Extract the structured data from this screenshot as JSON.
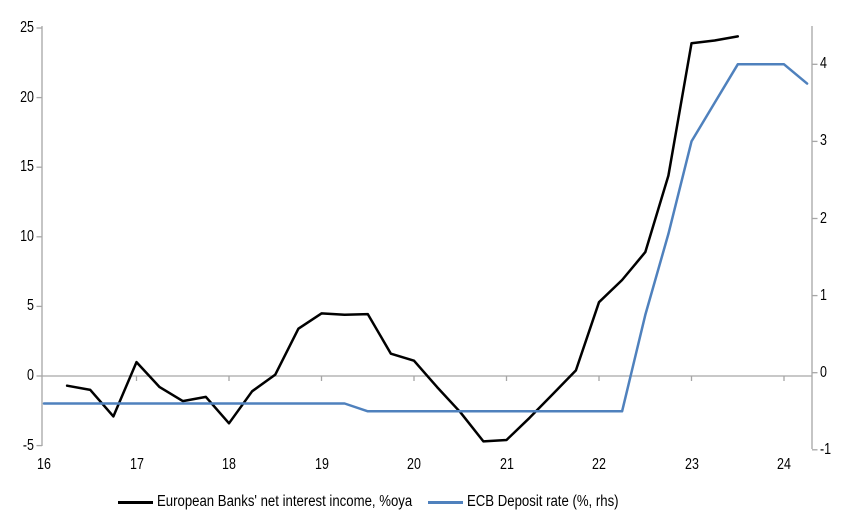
{
  "chart_data": {
    "type": "line",
    "title": "",
    "grid": "zero-line-only",
    "legend_position": "bottom",
    "x_axis": {
      "min": 16,
      "max": 24.3,
      "tick_years": [
        16,
        17,
        18,
        19,
        20,
        21,
        22,
        23,
        24
      ],
      "tick_labels": [
        "16",
        "17",
        "18",
        "19",
        "20",
        "21",
        "22",
        "23",
        "24"
      ]
    },
    "left_axis": {
      "min": -5,
      "max": 25,
      "ticks": [
        -5,
        0,
        5,
        10,
        15,
        20,
        25
      ],
      "tick_labels": [
        "-5",
        "0",
        "5",
        "10",
        "15",
        "20",
        "25"
      ]
    },
    "right_axis": {
      "min": -1,
      "max": 4.5,
      "ticks": [
        -1,
        0,
        1,
        2,
        3,
        4
      ],
      "tick_labels": [
        "-1",
        "0",
        "1",
        "2",
        "3",
        "4"
      ]
    },
    "series": [
      {
        "name": "European Banks' net interest income, %oya",
        "axis": "left",
        "color": "#000000",
        "x": [
          16.25,
          16.5,
          16.75,
          17.0,
          17.25,
          17.5,
          17.75,
          18.0,
          18.25,
          18.5,
          18.75,
          19.0,
          19.25,
          19.5,
          19.75,
          20.0,
          20.25,
          20.5,
          20.75,
          21.0,
          21.25,
          21.5,
          21.75,
          22.0,
          22.25,
          22.5,
          22.75,
          23.0,
          23.25,
          23.5
        ],
        "values": [
          -0.7,
          -1.0,
          -2.9,
          1.0,
          -0.8,
          -1.8,
          -1.5,
          -3.4,
          -1.1,
          0.1,
          3.4,
          4.5,
          4.4,
          4.45,
          1.6,
          1.1,
          -0.8,
          -2.6,
          -4.7,
          -4.6,
          -3.0,
          -1.3,
          0.4,
          5.3,
          6.9,
          8.9,
          14.4,
          23.9,
          24.1,
          24.4
        ]
      },
      {
        "name": "ECB Deposit rate (%, rhs)",
        "axis": "right",
        "color": "#4F81BD",
        "x": [
          16.0,
          16.25,
          16.5,
          16.75,
          17.0,
          17.25,
          17.5,
          17.75,
          18.0,
          18.25,
          18.5,
          18.75,
          19.0,
          19.25,
          19.5,
          19.75,
          20.0,
          20.25,
          20.5,
          20.75,
          21.0,
          21.25,
          21.5,
          21.75,
          22.0,
          22.25,
          22.5,
          22.75,
          23.0,
          23.25,
          23.5,
          23.75,
          24.0,
          24.25
        ],
        "values": [
          -0.4,
          -0.4,
          -0.4,
          -0.4,
          -0.4,
          -0.4,
          -0.4,
          -0.4,
          -0.4,
          -0.4,
          -0.4,
          -0.4,
          -0.4,
          -0.4,
          -0.5,
          -0.5,
          -0.5,
          -0.5,
          -0.5,
          -0.5,
          -0.5,
          -0.5,
          -0.5,
          -0.5,
          -0.5,
          -0.5,
          0.75,
          1.8,
          3.0,
          3.5,
          4.0,
          4.0,
          4.0,
          3.75
        ]
      }
    ]
  },
  "colors": {
    "background": "#ffffff",
    "axis": "#a6a6a6",
    "zero_line": "#a6a6a6",
    "text": "#000000",
    "nii_line": "#000000",
    "rate_line": "#4F81BD"
  }
}
